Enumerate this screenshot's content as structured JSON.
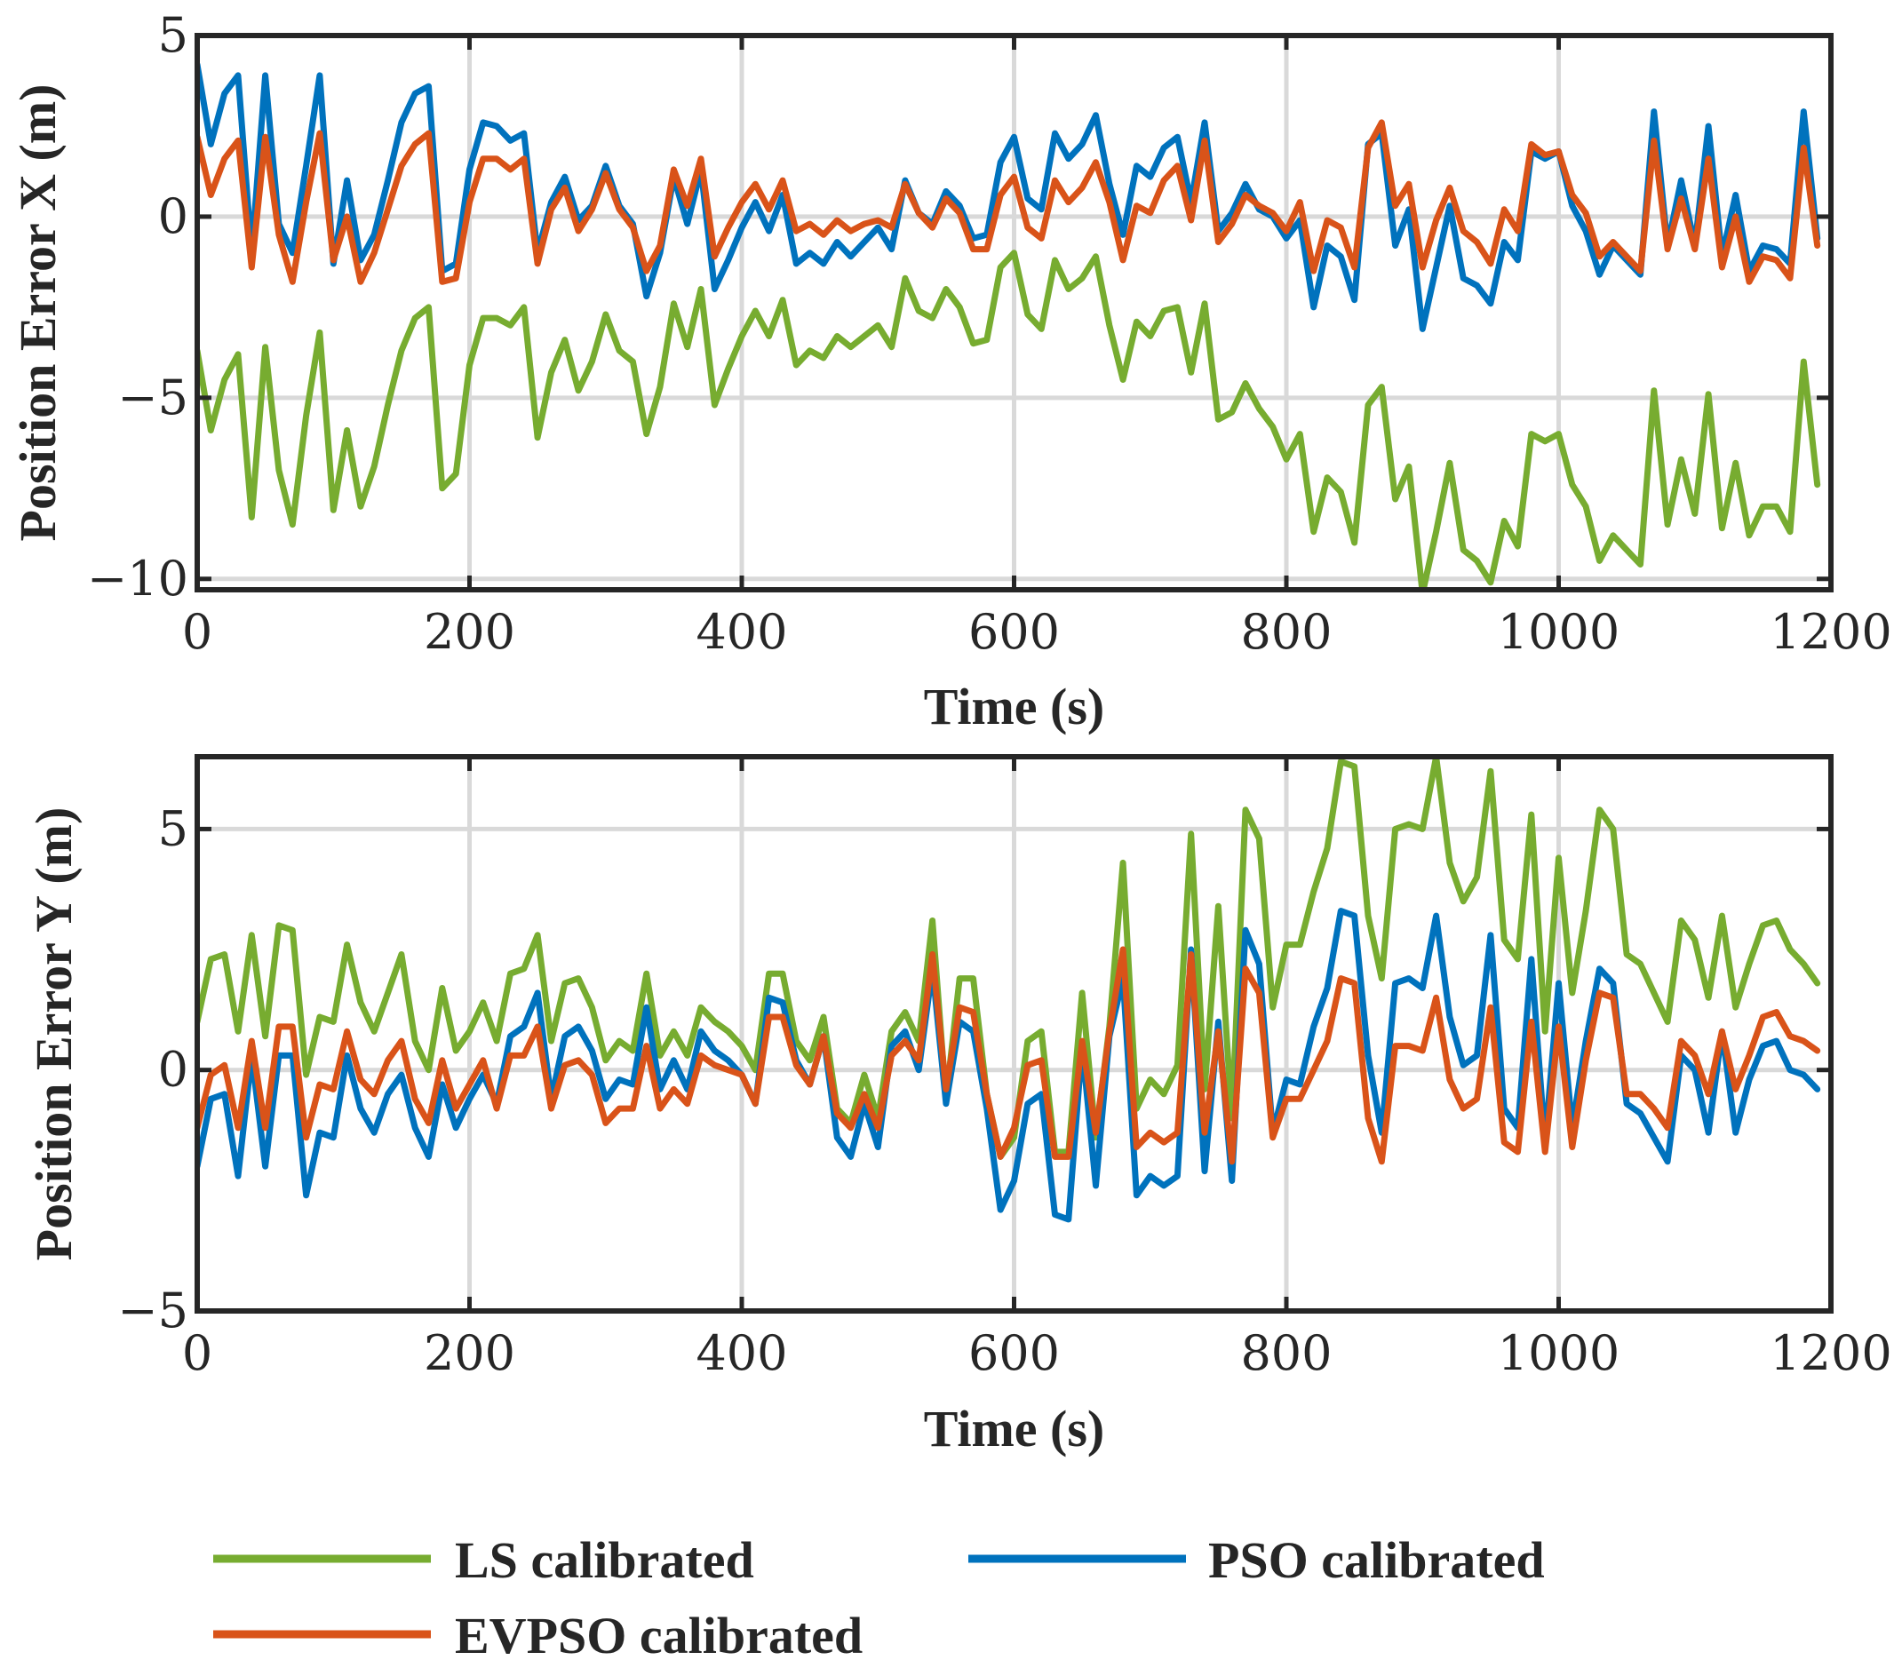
{
  "chart_data": [
    {
      "type": "line",
      "title": "",
      "xlabel": "Time (s)",
      "ylabel": "Position Error X (m)",
      "xlim": [
        0,
        1200
      ],
      "ylim": [
        -10.3,
        5
      ],
      "xticks": [
        0,
        200,
        400,
        600,
        800,
        1000,
        1200
      ],
      "xtick_labels": [
        "0",
        "200",
        "400",
        "600",
        "800",
        "1000",
        "1200"
      ],
      "yticks": [
        5,
        0,
        -5,
        -10
      ],
      "ytick_labels": [
        "5",
        "0",
        "−5",
        "−10"
      ],
      "grid": true,
      "x": [
        0,
        10,
        20,
        30,
        40,
        50,
        60,
        70,
        80,
        90,
        100,
        110,
        120,
        130,
        140,
        150,
        160,
        170,
        180,
        190,
        200,
        210,
        220,
        230,
        240,
        250,
        260,
        270,
        280,
        290,
        300,
        310,
        320,
        330,
        340,
        350,
        360,
        370,
        380,
        390,
        400,
        410,
        420,
        430,
        440,
        450,
        460,
        470,
        480,
        490,
        500,
        510,
        520,
        530,
        540,
        550,
        560,
        570,
        580,
        590,
        600,
        610,
        620,
        630,
        640,
        650,
        660,
        670,
        680,
        690,
        700,
        710,
        720,
        730,
        740,
        750,
        760,
        770,
        780,
        790,
        800,
        810,
        820,
        830,
        840,
        850,
        860,
        870,
        880,
        890,
        900,
        910,
        920,
        930,
        940,
        950,
        960,
        970,
        980,
        990,
        1000,
        1010,
        1020,
        1030,
        1040,
        1050,
        1060,
        1070,
        1080,
        1090,
        1100,
        1110,
        1120,
        1130,
        1140,
        1150,
        1160,
        1170,
        1180,
        1190
      ],
      "series": [
        {
          "name": "LS calibrated",
          "color": "#77ac30",
          "values": [
            -3.7,
            -5.9,
            -4.5,
            -3.8,
            -8.3,
            -3.6,
            -7.0,
            -8.5,
            -5.5,
            -3.2,
            -8.1,
            -5.9,
            -8.0,
            -6.9,
            -5.2,
            -3.7,
            -2.8,
            -2.5,
            -7.5,
            -7.1,
            -4.1,
            -2.8,
            -2.8,
            -3.0,
            -2.5,
            -6.1,
            -4.3,
            -3.4,
            -4.8,
            -4.0,
            -2.7,
            -3.7,
            -4.0,
            -6.0,
            -4.7,
            -2.4,
            -3.6,
            -2.0,
            -5.2,
            -4.2,
            -3.3,
            -2.6,
            -3.3,
            -2.3,
            -4.1,
            -3.7,
            -3.9,
            -3.3,
            -3.6,
            -3.3,
            -3.0,
            -3.6,
            -1.7,
            -2.6,
            -2.8,
            -2.0,
            -2.5,
            -3.5,
            -3.4,
            -1.4,
            -1.0,
            -2.7,
            -3.1,
            -1.2,
            -2.0,
            -1.7,
            -1.1,
            -3.0,
            -4.5,
            -2.9,
            -3.3,
            -2.6,
            -2.5,
            -4.3,
            -2.4,
            -5.6,
            -5.4,
            -4.6,
            -5.3,
            -5.8,
            -6.7,
            -6.0,
            -8.7,
            -7.2,
            -7.6,
            -9.0,
            -5.2,
            -4.7,
            -7.8,
            -6.9,
            -10.4,
            -8.7,
            -6.8,
            -9.2,
            -9.5,
            -10.1,
            -8.4,
            -9.1,
            -6.0,
            -6.2,
            -6.0,
            -7.4,
            -8.0,
            -9.5,
            -8.8,
            -9.2,
            -9.6,
            -4.8,
            -8.5,
            -6.7,
            -8.2,
            -4.9,
            -8.6,
            -6.8,
            -8.8,
            -8.0,
            -8.0,
            -8.7,
            -4.0,
            -7.4
          ]
        },
        {
          "name": "PSO calibrated",
          "color": "#0072bd",
          "values": [
            4.2,
            2.0,
            3.4,
            3.9,
            -1.0,
            3.9,
            -0.2,
            -1.0,
            1.4,
            3.9,
            -1.3,
            1.0,
            -1.2,
            -0.5,
            1.0,
            2.6,
            3.4,
            3.6,
            -1.5,
            -1.3,
            1.3,
            2.6,
            2.5,
            2.1,
            2.3,
            -1.0,
            0.4,
            1.1,
            -0.1,
            0.3,
            1.4,
            0.3,
            -0.2,
            -2.2,
            -1.0,
            1.1,
            -0.2,
            1.3,
            -2.0,
            -1.2,
            -0.3,
            0.4,
            -0.4,
            0.6,
            -1.3,
            -1.0,
            -1.3,
            -0.7,
            -1.1,
            -0.7,
            -0.3,
            -0.9,
            1.0,
            0.1,
            -0.2,
            0.7,
            0.3,
            -0.6,
            -0.5,
            1.5,
            2.2,
            0.5,
            0.2,
            2.3,
            1.6,
            2.0,
            2.8,
            0.9,
            -0.5,
            1.4,
            1.1,
            1.9,
            2.2,
            0.4,
            2.6,
            -0.4,
            0.1,
            0.9,
            0.2,
            0.0,
            -0.6,
            -0.1,
            -2.5,
            -0.8,
            -1.1,
            -2.3,
            2.0,
            2.3,
            -0.8,
            0.2,
            -3.1,
            -1.4,
            0.3,
            -1.7,
            -1.9,
            -2.4,
            -0.7,
            -1.2,
            1.8,
            1.6,
            1.8,
            0.3,
            -0.4,
            -1.6,
            -0.8,
            -1.2,
            -1.6,
            2.9,
            -0.8,
            1.0,
            -0.8,
            2.5,
            -1.1,
            0.6,
            -1.5,
            -0.8,
            -0.9,
            -1.3,
            2.9,
            -0.6
          ]
        },
        {
          "name": "EVPSO calibrated",
          "color": "#d95319",
          "values": [
            2.2,
            0.6,
            1.6,
            2.1,
            -1.4,
            2.2,
            -0.5,
            -1.8,
            0.4,
            2.3,
            -1.2,
            0.0,
            -1.8,
            -1.0,
            0.2,
            1.4,
            2.0,
            2.3,
            -1.8,
            -1.7,
            0.4,
            1.6,
            1.6,
            1.3,
            1.6,
            -1.3,
            0.2,
            0.8,
            -0.4,
            0.2,
            1.2,
            0.2,
            -0.3,
            -1.5,
            -0.8,
            1.3,
            0.3,
            1.6,
            -1.1,
            -0.3,
            0.4,
            0.9,
            0.2,
            1.0,
            -0.4,
            -0.2,
            -0.5,
            -0.1,
            -0.4,
            -0.2,
            -0.1,
            -0.3,
            0.9,
            0.1,
            -0.3,
            0.5,
            0.1,
            -0.9,
            -0.9,
            0.6,
            1.1,
            -0.3,
            -0.6,
            1.0,
            0.4,
            0.8,
            1.5,
            0.4,
            -1.2,
            0.3,
            0.1,
            1.0,
            1.4,
            -0.1,
            2.1,
            -0.7,
            -0.2,
            0.6,
            0.3,
            0.1,
            -0.4,
            0.4,
            -1.5,
            -0.1,
            -0.3,
            -1.4,
            1.9,
            2.6,
            0.3,
            0.9,
            -1.4,
            -0.1,
            0.8,
            -0.4,
            -0.7,
            -1.3,
            0.2,
            -0.4,
            2.0,
            1.7,
            1.8,
            0.6,
            0.1,
            -1.1,
            -0.7,
            -1.1,
            -1.5,
            2.1,
            -0.9,
            0.5,
            -0.9,
            1.6,
            -1.4,
            0.0,
            -1.8,
            -1.1,
            -1.2,
            -1.7,
            1.9,
            -0.8
          ]
        }
      ]
    },
    {
      "type": "line",
      "title": "",
      "xlabel": "Time (s)",
      "ylabel": "Position Error Y (m)",
      "xlim": [
        0,
        1200
      ],
      "ylim": [
        -5,
        6.5
      ],
      "xticks": [
        0,
        200,
        400,
        600,
        800,
        1000,
        1200
      ],
      "xtick_labels": [
        "0",
        "200",
        "400",
        "600",
        "800",
        "1000",
        "1200"
      ],
      "yticks": [
        5,
        0,
        -5
      ],
      "ytick_labels": [
        "5",
        "0",
        "−5"
      ],
      "grid": true,
      "x": [
        0,
        10,
        20,
        30,
        40,
        50,
        60,
        70,
        80,
        90,
        100,
        110,
        120,
        130,
        140,
        150,
        160,
        170,
        180,
        190,
        200,
        210,
        220,
        230,
        240,
        250,
        260,
        270,
        280,
        290,
        300,
        310,
        320,
        330,
        340,
        350,
        360,
        370,
        380,
        390,
        400,
        410,
        420,
        430,
        440,
        450,
        460,
        470,
        480,
        490,
        500,
        510,
        520,
        530,
        540,
        550,
        560,
        570,
        580,
        590,
        600,
        610,
        620,
        630,
        640,
        650,
        660,
        670,
        680,
        690,
        700,
        710,
        720,
        730,
        740,
        750,
        760,
        770,
        780,
        790,
        800,
        810,
        820,
        830,
        840,
        850,
        860,
        870,
        880,
        890,
        900,
        910,
        920,
        930,
        940,
        950,
        960,
        970,
        980,
        990,
        1000,
        1010,
        1020,
        1030,
        1040,
        1050,
        1060,
        1070,
        1080,
        1090,
        1100,
        1110,
        1120,
        1130,
        1140,
        1150,
        1160,
        1170,
        1180,
        1190
      ],
      "series": [
        {
          "name": "LS calibrated",
          "color": "#77ac30",
          "values": [
            1.0,
            2.3,
            2.4,
            0.8,
            2.8,
            0.7,
            3.0,
            2.9,
            -0.1,
            1.1,
            1.0,
            2.6,
            1.4,
            0.8,
            1.6,
            2.4,
            0.6,
            0.0,
            1.7,
            0.4,
            0.8,
            1.4,
            0.6,
            2.0,
            2.1,
            2.8,
            0.6,
            1.8,
            1.9,
            1.3,
            0.2,
            0.6,
            0.4,
            2.0,
            0.3,
            0.8,
            0.3,
            1.3,
            1.0,
            0.8,
            0.5,
            0.0,
            2.0,
            2.0,
            0.6,
            0.2,
            1.1,
            -0.8,
            -1.1,
            -0.1,
            -1.0,
            0.8,
            1.2,
            0.6,
            3.1,
            -0.6,
            1.9,
            1.9,
            -0.5,
            -1.8,
            -1.4,
            0.6,
            0.8,
            -1.7,
            -1.7,
            1.6,
            -1.4,
            0.9,
            4.3,
            -0.8,
            -0.2,
            -0.5,
            0.1,
            4.9,
            -0.4,
            3.4,
            -1.0,
            5.4,
            4.8,
            1.3,
            2.6,
            2.6,
            3.7,
            4.6,
            6.4,
            6.3,
            3.2,
            1.9,
            5.0,
            5.1,
            5.0,
            6.5,
            4.3,
            3.5,
            4.0,
            6.2,
            2.7,
            2.3,
            5.3,
            0.8,
            4.4,
            1.6,
            3.3,
            5.4,
            5.0,
            2.4,
            2.2,
            1.6,
            1.0,
            3.1,
            2.7,
            1.5,
            3.2,
            1.3,
            2.2,
            3.0,
            3.1,
            2.5,
            2.2,
            1.8
          ]
        },
        {
          "name": "PSO calibrated",
          "color": "#0072bd",
          "values": [
            -2.0,
            -0.6,
            -0.5,
            -2.2,
            0.3,
            -2.0,
            0.3,
            0.3,
            -2.6,
            -1.3,
            -1.4,
            0.3,
            -0.8,
            -1.3,
            -0.5,
            -0.1,
            -1.2,
            -1.8,
            -0.3,
            -1.2,
            -0.6,
            -0.1,
            -0.7,
            0.7,
            0.9,
            1.6,
            -0.6,
            0.7,
            0.9,
            0.4,
            -0.6,
            -0.2,
            -0.3,
            1.3,
            -0.4,
            0.2,
            -0.4,
            0.8,
            0.4,
            0.2,
            -0.1,
            -0.7,
            1.5,
            1.4,
            0.2,
            -0.3,
            0.7,
            -1.4,
            -1.8,
            -0.7,
            -1.6,
            0.5,
            0.8,
            0.0,
            2.1,
            -0.7,
            1.0,
            0.8,
            -0.8,
            -2.9,
            -2.3,
            -0.7,
            -0.5,
            -3.0,
            -3.1,
            0.5,
            -2.4,
            0.7,
            1.9,
            -2.6,
            -2.2,
            -2.4,
            -2.2,
            2.5,
            -2.1,
            1.0,
            -2.3,
            2.9,
            2.2,
            -1.3,
            -0.2,
            -0.3,
            0.9,
            1.7,
            3.3,
            3.2,
            0.3,
            -1.3,
            1.8,
            1.9,
            1.7,
            3.2,
            1.1,
            0.1,
            0.3,
            2.8,
            -0.8,
            -1.2,
            2.3,
            -1.5,
            1.8,
            -1.2,
            0.6,
            2.1,
            1.8,
            -0.7,
            -0.9,
            -1.4,
            -1.9,
            0.3,
            0.0,
            -1.3,
            0.8,
            -1.3,
            -0.2,
            0.5,
            0.6,
            0.0,
            -0.1,
            -0.4
          ]
        },
        {
          "name": "EVPSO calibrated",
          "color": "#d95319",
          "values": [
            -1.2,
            -0.1,
            0.1,
            -1.2,
            0.6,
            -1.2,
            0.9,
            0.9,
            -1.4,
            -0.3,
            -0.4,
            0.8,
            -0.2,
            -0.5,
            0.2,
            0.6,
            -0.6,
            -1.1,
            0.2,
            -0.8,
            -0.3,
            0.2,
            -0.8,
            0.3,
            0.3,
            0.9,
            -0.8,
            0.1,
            0.2,
            -0.1,
            -1.1,
            -0.8,
            -0.8,
            0.5,
            -0.8,
            -0.4,
            -0.7,
            0.3,
            0.1,
            0.0,
            -0.1,
            -0.7,
            1.1,
            1.1,
            0.1,
            -0.3,
            0.7,
            -0.9,
            -1.2,
            -0.5,
            -1.2,
            0.3,
            0.6,
            0.2,
            2.4,
            -0.4,
            1.3,
            1.2,
            -0.5,
            -1.8,
            -1.2,
            0.1,
            0.2,
            -1.8,
            -1.8,
            0.6,
            -1.3,
            0.8,
            2.5,
            -1.6,
            -1.3,
            -1.5,
            -1.3,
            2.4,
            -1.3,
            0.8,
            -1.9,
            2.1,
            1.6,
            -1.4,
            -0.6,
            -0.6,
            0.0,
            0.6,
            1.9,
            1.8,
            -1.0,
            -1.9,
            0.5,
            0.5,
            0.4,
            1.5,
            -0.2,
            -0.8,
            -0.6,
            1.3,
            -1.5,
            -1.7,
            1.0,
            -1.7,
            0.9,
            -1.6,
            0.2,
            1.6,
            1.5,
            -0.5,
            -0.5,
            -0.8,
            -1.2,
            0.6,
            0.3,
            -0.5,
            0.8,
            -0.4,
            0.3,
            1.1,
            1.2,
            0.7,
            0.6,
            0.4
          ]
        }
      ]
    }
  ],
  "legend": {
    "placement": "bottom",
    "entries": [
      {
        "label": "LS calibrated",
        "color": "#77ac30"
      },
      {
        "label": "PSO calibrated",
        "color": "#0072bd"
      },
      {
        "label": "EVPSO calibrated",
        "color": "#d95319"
      }
    ]
  }
}
